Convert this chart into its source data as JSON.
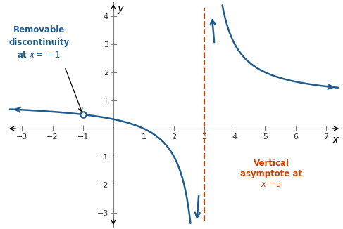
{
  "xlim": [
    -3.5,
    7.5
  ],
  "ylim": [
    -3.5,
    4.5
  ],
  "xticks": [
    -3,
    -2,
    -1,
    1,
    2,
    3,
    4,
    5,
    6,
    7
  ],
  "yticks": [
    -3,
    -2,
    -1,
    1,
    2,
    3,
    4
  ],
  "curve_color": "#1f5c8b",
  "asymptote_color": "#cc4400",
  "asymptote_x": 3,
  "hole_x": -1,
  "annotation_removable_line1": "Removable",
  "annotation_removable_line2": "discontinuity",
  "annotation_removable_line3": "at ",
  "annotation_color_removable": "#1f5c8b",
  "annotation_color_asymptote": "#cc4400",
  "background_color": "#ffffff"
}
